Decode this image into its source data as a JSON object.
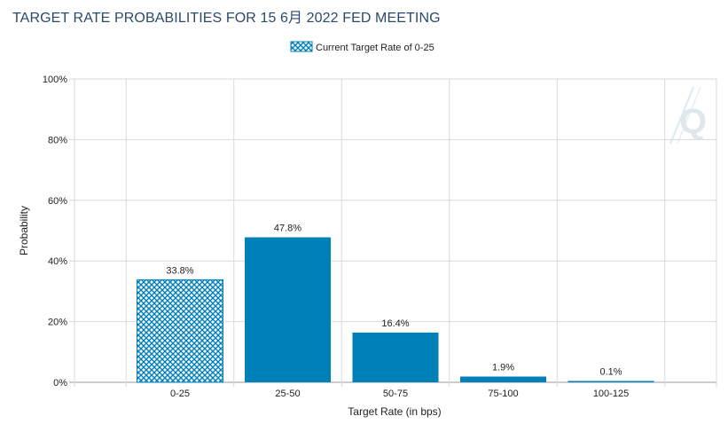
{
  "chart_data": {
    "type": "bar",
    "title": "TARGET RATE PROBABILITIES FOR 15 6月 2022 FED MEETING",
    "categories": [
      "0-25",
      "25-50",
      "50-75",
      "75-100",
      "100-125"
    ],
    "values": [
      33.8,
      47.8,
      16.4,
      1.9,
      0.1
    ],
    "data_labels": [
      "33.8%",
      "47.8%",
      "16.4%",
      "1.9%",
      "0.1%"
    ],
    "highlighted_category": "0-25",
    "legend": [
      "Current Target Rate of 0-25"
    ],
    "legend_position": "top-center",
    "xlabel": "Target Rate (in bps)",
    "ylabel": "Probability",
    "ylim": [
      0,
      100
    ],
    "yticks": [
      0,
      20,
      40,
      60,
      80,
      100
    ],
    "ytick_labels": [
      "0%",
      "20%",
      "40%",
      "60%",
      "80%",
      "100%"
    ],
    "grid": true,
    "colors": {
      "bar": "#0080b8",
      "hatch": "#0080b8",
      "grid": "#d9d9d9",
      "title": "#2a4a6b"
    },
    "watermark": "Q"
  }
}
